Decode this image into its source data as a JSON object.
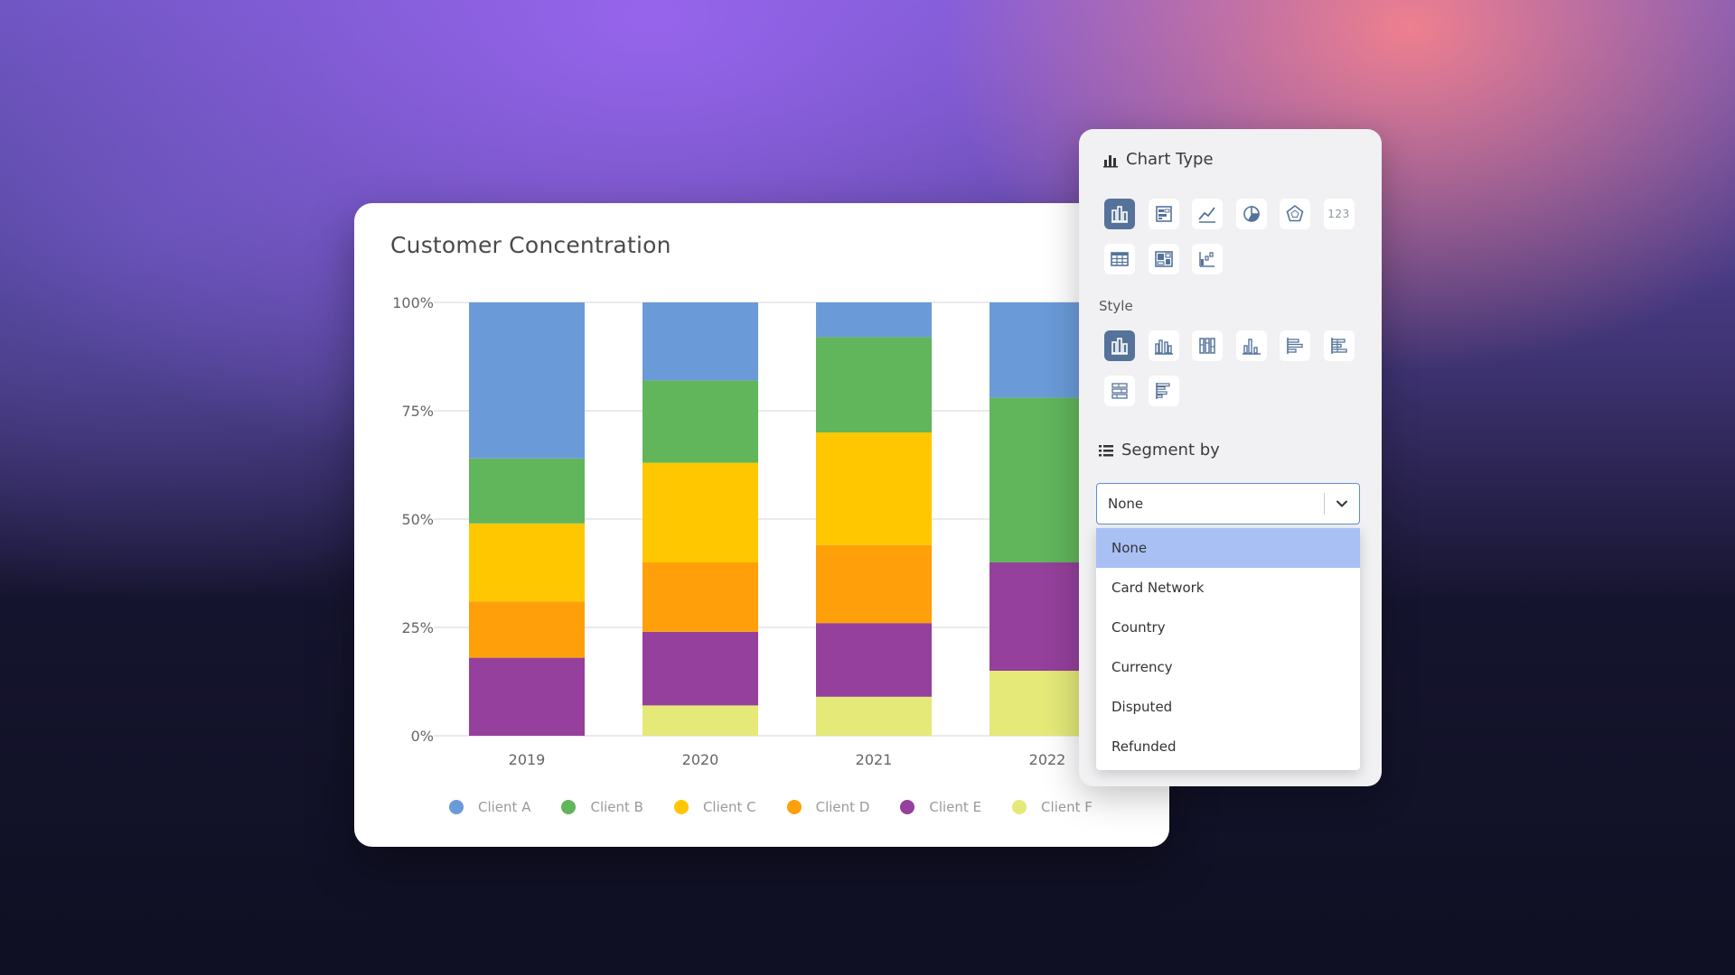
{
  "chart_card": {
    "title": "Customer Concentration"
  },
  "chart_data": {
    "type": "bar",
    "stacked": true,
    "percent": true,
    "title": "Customer Concentration",
    "categories": [
      "2019",
      "2020",
      "2021",
      "2022"
    ],
    "y_ticks": [
      "0%",
      "25%",
      "50%",
      "75%",
      "100%"
    ],
    "ylim": [
      0,
      100
    ],
    "grid": true,
    "legend_position": "bottom",
    "series": [
      {
        "name": "Client A",
        "color": "#6a9bd8",
        "values": [
          36,
          18,
          8,
          22
        ]
      },
      {
        "name": "Client B",
        "color": "#61b55b",
        "values": [
          15,
          19,
          22,
          38
        ]
      },
      {
        "name": "Client C",
        "color": "#ffc700",
        "values": [
          18,
          23,
          26,
          0
        ]
      },
      {
        "name": "Client D",
        "color": "#ff9f0a",
        "values": [
          13,
          16,
          18,
          0
        ]
      },
      {
        "name": "Client E",
        "color": "#94409c",
        "values": [
          18,
          17,
          17,
          25
        ]
      },
      {
        "name": "Client F",
        "color": "#e4e978",
        "values": [
          0,
          7,
          9,
          15
        ]
      }
    ]
  },
  "panel": {
    "chart_type_label": "Chart Type",
    "style_label": "Style",
    "segment_by_label": "Segment by",
    "chart_type_icons": [
      {
        "icon": "stacked-bar-chart-icon",
        "active": true
      },
      {
        "icon": "stacked-list-icon",
        "active": false
      },
      {
        "icon": "line-chart-icon",
        "active": false
      },
      {
        "icon": "pie-chart-icon",
        "active": false
      },
      {
        "icon": "radar-chart-icon",
        "active": false
      },
      {
        "icon": "number-icon",
        "label": "123",
        "active": false
      },
      {
        "icon": "table-icon",
        "active": false
      },
      {
        "icon": "treemap-icon",
        "active": false
      },
      {
        "icon": "waterfall-chart-icon",
        "active": false
      }
    ],
    "style_icons": [
      {
        "icon": "stacked-column-icon",
        "active": true
      },
      {
        "icon": "grouped-column-icon",
        "active": false
      },
      {
        "icon": "percent-column-icon",
        "active": false
      },
      {
        "icon": "simple-column-icon",
        "active": false
      },
      {
        "icon": "horizontal-bar-icon",
        "active": false
      },
      {
        "icon": "horizontal-stacked-bar-icon",
        "active": false
      },
      {
        "icon": "horizontal-percent-bar-icon",
        "active": false
      },
      {
        "icon": "horizontal-grouped-bar-icon",
        "active": false
      }
    ],
    "segment_by": {
      "value": "None",
      "options": [
        "None",
        "Card Network",
        "Country",
        "Currency",
        "Disputed",
        "Refunded"
      ],
      "selected_index": 0
    }
  }
}
